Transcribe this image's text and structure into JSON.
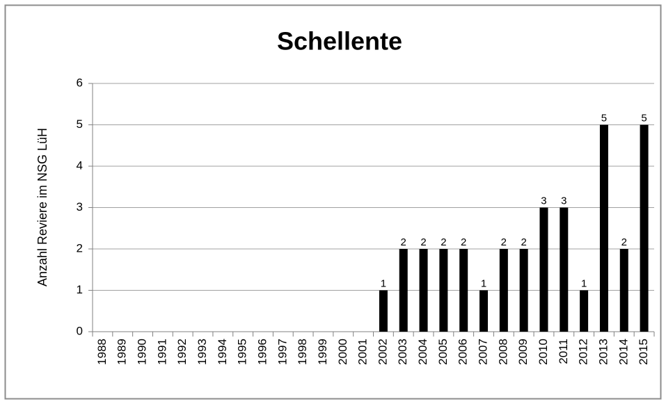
{
  "chart_data": {
    "type": "bar",
    "title": "Schellente",
    "y_label": "Anzahl Reviere im NSG LüH",
    "categories": [
      "1988",
      "1989",
      "1990",
      "1991",
      "1992",
      "1993",
      "1994",
      "1995",
      "1996",
      "1997",
      "1998",
      "1999",
      "2000",
      "2001",
      "2002",
      "2003",
      "2004",
      "2005",
      "2006",
      "2007",
      "2008",
      "2009",
      "2010",
      "2011",
      "2012",
      "2013",
      "2014",
      "2015"
    ],
    "values": [
      0,
      0,
      0,
      0,
      0,
      0,
      0,
      0,
      0,
      0,
      0,
      0,
      0,
      0,
      1,
      2,
      2,
      2,
      2,
      1,
      2,
      2,
      3,
      3,
      1,
      5,
      2,
      5
    ],
    "color": "#000000",
    "ylim": [
      0,
      6
    ],
    "yticks": [
      0,
      1,
      2,
      3,
      4,
      5,
      6
    ],
    "grid": true
  }
}
